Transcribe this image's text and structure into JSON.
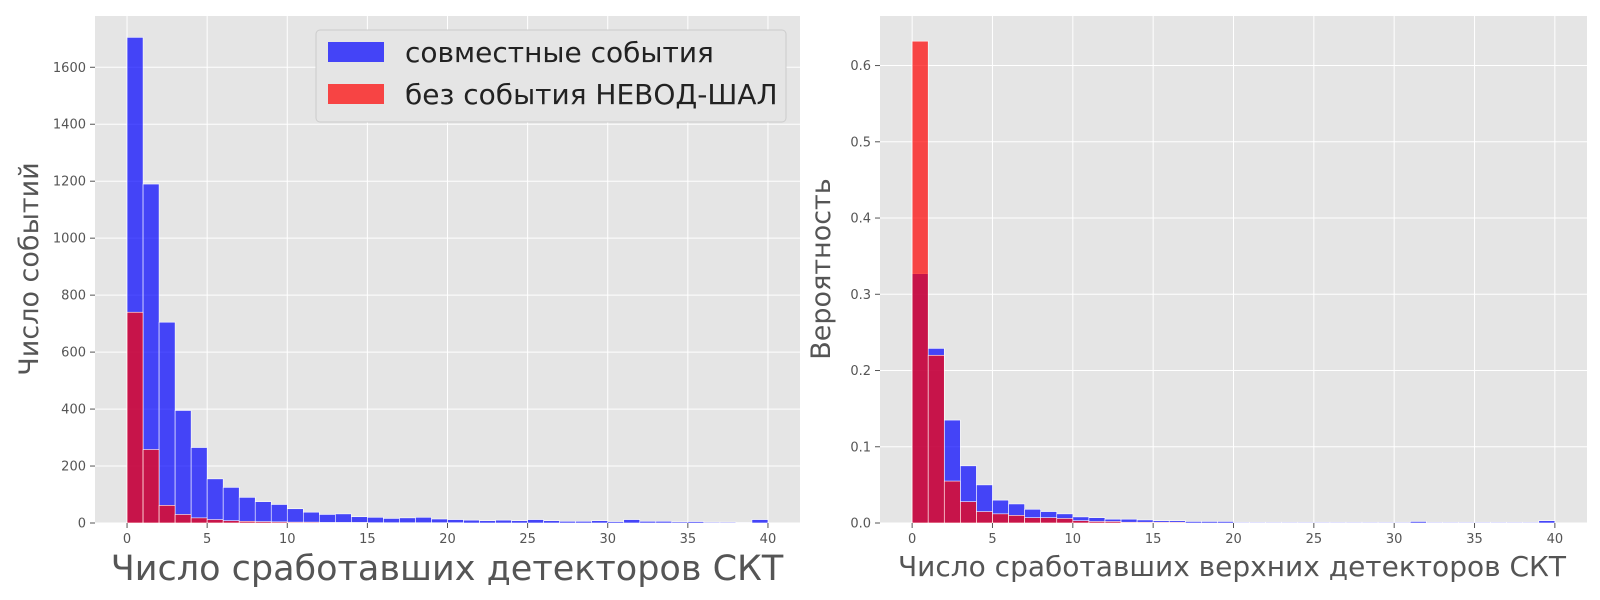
{
  "chart_data": [
    {
      "type": "bar",
      "subtype": "histogram",
      "xlabel": "Число сработавших детекторов СКТ",
      "ylabel": "Число событий",
      "xlim": [
        -2,
        42
      ],
      "ylim": [
        0,
        1780
      ],
      "xticks": [
        0,
        5,
        10,
        15,
        20,
        25,
        30,
        35,
        40
      ],
      "yticks": [
        0,
        200,
        400,
        600,
        800,
        1000,
        1200,
        1400,
        1600
      ],
      "bin_width": 1,
      "bin_starts": [
        0,
        1,
        2,
        3,
        4,
        5,
        6,
        7,
        8,
        9,
        10,
        11,
        12,
        13,
        14,
        15,
        16,
        17,
        18,
        19,
        20,
        21,
        22,
        23,
        24,
        25,
        26,
        27,
        28,
        29,
        30,
        31,
        32,
        33,
        34,
        35,
        36,
        37,
        38,
        39
      ],
      "grid": true,
      "legend": {
        "placement": "top-right"
      },
      "series": [
        {
          "name": "совместные события",
          "color": "#0000ff",
          "values": [
            1705,
            1190,
            705,
            395,
            265,
            155,
            125,
            90,
            75,
            65,
            50,
            38,
            30,
            32,
            22,
            20,
            16,
            18,
            20,
            14,
            12,
            10,
            8,
            10,
            8,
            12,
            8,
            6,
            6,
            8,
            5,
            12,
            6,
            6,
            4,
            5,
            3,
            3,
            2,
            12
          ]
        },
        {
          "name": "без события НЕВОД-ШАЛ",
          "color": "#ff0000",
          "values": [
            740,
            258,
            62,
            30,
            18,
            12,
            8,
            6,
            5,
            4,
            3,
            3,
            2,
            2,
            2,
            1,
            1,
            1,
            1,
            1,
            1,
            0,
            0,
            0,
            0,
            0,
            0,
            0,
            0,
            0,
            0,
            0,
            0,
            0,
            0,
            0,
            0,
            0,
            0,
            0
          ]
        }
      ]
    },
    {
      "type": "bar",
      "subtype": "histogram",
      "xlabel": "Число сработавших верхних детекторов СКТ",
      "ylabel": "Вероятность",
      "xlim": [
        -2,
        42
      ],
      "ylim": [
        0,
        0.665
      ],
      "xticks": [
        0,
        5,
        10,
        15,
        20,
        25,
        30,
        35,
        40
      ],
      "yticks": [
        0.0,
        0.1,
        0.2,
        0.3,
        0.4,
        0.5,
        0.6
      ],
      "bin_width": 1,
      "bin_starts": [
        0,
        1,
        2,
        3,
        4,
        5,
        6,
        7,
        8,
        9,
        10,
        11,
        12,
        13,
        14,
        15,
        16,
        17,
        18,
        19,
        20,
        21,
        22,
        23,
        24,
        25,
        26,
        27,
        28,
        29,
        30,
        31,
        32,
        33,
        34,
        35,
        36,
        37,
        38,
        39
      ],
      "grid": true,
      "series": [
        {
          "name": "совместные события",
          "color": "#0000ff",
          "values": [
            0.327,
            0.229,
            0.135,
            0.075,
            0.05,
            0.03,
            0.025,
            0.018,
            0.015,
            0.012,
            0.008,
            0.007,
            0.005,
            0.005,
            0.004,
            0.003,
            0.003,
            0.002,
            0.002,
            0.002,
            0.001,
            0.001,
            0.001,
            0.001,
            0.001,
            0.001,
            0.001,
            0.001,
            0.001,
            0.001,
            0.001,
            0.002,
            0.001,
            0.001,
            0.001,
            0.001,
            0.001,
            0.001,
            0.001,
            0.003
          ]
        },
        {
          "name": "без события НЕВОД-ШАЛ",
          "color": "#ff0000",
          "values": [
            0.632,
            0.22,
            0.055,
            0.028,
            0.015,
            0.012,
            0.01,
            0.007,
            0.007,
            0.006,
            0.003,
            0.002,
            0.002,
            0.001,
            0.001,
            0.001,
            0.001,
            0.0,
            0.0,
            0.0,
            0.0,
            0.0,
            0.0,
            0.0,
            0.0,
            0.0,
            0.0,
            0.0,
            0.0,
            0.0,
            0.0,
            0.0,
            0.0,
            0.0,
            0.0,
            0.0,
            0.0,
            0.0,
            0.0,
            0.0
          ]
        }
      ]
    }
  ]
}
